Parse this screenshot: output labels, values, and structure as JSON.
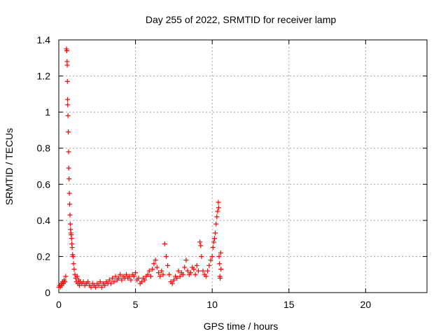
{
  "chart_data": {
    "type": "scatter",
    "title": "Day 255 of 2022, SRMTID for receiver lamp",
    "xlabel": "GPS time / hours",
    "ylabel": "SRMTID / TECUs",
    "xlim": [
      0,
      24
    ],
    "ylim": [
      0,
      1.4
    ],
    "xticks": [
      0,
      5,
      10,
      15,
      20
    ],
    "xtick_labels": [
      "0",
      "5",
      "10",
      "15",
      "20"
    ],
    "yticks": [
      0,
      0.2,
      0.4,
      0.6,
      0.8,
      1,
      1.2,
      1.4
    ],
    "ytick_labels": [
      "0",
      "0.2",
      "0.4",
      "0.6",
      "0.8",
      "1",
      "1.2",
      "1.4"
    ],
    "grid": true,
    "marker": "plus",
    "colors": {
      "series": "#ff0000",
      "grid": "#a0a0a0",
      "axis": "#000000"
    },
    "series": [
      {
        "name": "SRMTID",
        "points": [
          [
            0.0,
            0.03
          ],
          [
            0.05,
            0.04
          ],
          [
            0.1,
            0.03
          ],
          [
            0.15,
            0.05
          ],
          [
            0.2,
            0.04
          ],
          [
            0.25,
            0.06
          ],
          [
            0.3,
            0.05
          ],
          [
            0.35,
            0.07
          ],
          [
            0.4,
            0.06
          ],
          [
            0.45,
            0.09
          ],
          [
            0.5,
            1.35
          ],
          [
            0.52,
            1.34
          ],
          [
            0.54,
            1.28
          ],
          [
            0.55,
            1.26
          ],
          [
            0.56,
            1.17
          ],
          [
            0.57,
            1.07
          ],
          [
            0.58,
            1.04
          ],
          [
            0.6,
            0.98
          ],
          [
            0.62,
            0.89
          ],
          [
            0.64,
            0.78
          ],
          [
            0.65,
            0.69
          ],
          [
            0.67,
            0.63
          ],
          [
            0.69,
            0.55
          ],
          [
            0.71,
            0.49
          ],
          [
            0.73,
            0.43
          ],
          [
            0.75,
            0.38
          ],
          [
            0.77,
            0.35
          ],
          [
            0.79,
            0.33
          ],
          [
            0.81,
            0.32
          ],
          [
            0.83,
            0.3
          ],
          [
            0.85,
            0.27
          ],
          [
            0.87,
            0.25
          ],
          [
            0.9,
            0.21
          ],
          [
            0.93,
            0.2
          ],
          [
            0.96,
            0.16
          ],
          [
            1.0,
            0.13
          ],
          [
            1.05,
            0.1
          ],
          [
            1.1,
            0.08
          ],
          [
            1.15,
            0.06
          ],
          [
            1.2,
            0.09
          ],
          [
            1.25,
            0.05
          ],
          [
            1.3,
            0.07
          ],
          [
            1.35,
            0.04
          ],
          [
            1.4,
            0.06
          ],
          [
            1.5,
            0.05
          ],
          [
            1.6,
            0.06
          ],
          [
            1.7,
            0.04
          ],
          [
            1.8,
            0.05
          ],
          [
            1.9,
            0.06
          ],
          [
            2.0,
            0.04
          ],
          [
            2.1,
            0.03
          ],
          [
            2.2,
            0.05
          ],
          [
            2.3,
            0.04
          ],
          [
            2.4,
            0.03
          ],
          [
            2.5,
            0.05
          ],
          [
            2.6,
            0.04
          ],
          [
            2.7,
            0.06
          ],
          [
            2.8,
            0.03
          ],
          [
            2.9,
            0.05
          ],
          [
            3.0,
            0.04
          ],
          [
            3.1,
            0.06
          ],
          [
            3.2,
            0.05
          ],
          [
            3.3,
            0.07
          ],
          [
            3.4,
            0.05
          ],
          [
            3.5,
            0.08
          ],
          [
            3.6,
            0.06
          ],
          [
            3.7,
            0.09
          ],
          [
            3.8,
            0.07
          ],
          [
            3.9,
            0.08
          ],
          [
            4.0,
            0.1
          ],
          [
            4.1,
            0.07
          ],
          [
            4.2,
            0.09
          ],
          [
            4.3,
            0.08
          ],
          [
            4.4,
            0.1
          ],
          [
            4.5,
            0.08
          ],
          [
            4.6,
            0.09
          ],
          [
            4.7,
            0.07
          ],
          [
            4.8,
            0.1
          ],
          [
            4.9,
            0.09
          ],
          [
            5.0,
            0.11
          ],
          [
            5.1,
            0.07
          ],
          [
            5.2,
            0.08
          ],
          [
            5.3,
            0.05
          ],
          [
            5.4,
            0.06
          ],
          [
            5.5,
            0.08
          ],
          [
            5.6,
            0.07
          ],
          [
            5.7,
            0.09
          ],
          [
            5.8,
            0.1
          ],
          [
            5.9,
            0.12
          ],
          [
            6.0,
            0.09
          ],
          [
            6.1,
            0.13
          ],
          [
            6.2,
            0.16
          ],
          [
            6.3,
            0.18
          ],
          [
            6.4,
            0.14
          ],
          [
            6.5,
            0.11
          ],
          [
            6.6,
            0.09
          ],
          [
            6.7,
            0.12
          ],
          [
            6.8,
            0.1
          ],
          [
            6.9,
            0.27
          ],
          [
            7.0,
            0.2
          ],
          [
            7.1,
            0.15
          ],
          [
            7.2,
            0.1
          ],
          [
            7.3,
            0.06
          ],
          [
            7.4,
            0.05
          ],
          [
            7.5,
            0.07
          ],
          [
            7.6,
            0.09
          ],
          [
            7.7,
            0.08
          ],
          [
            7.8,
            0.12
          ],
          [
            7.9,
            0.09
          ],
          [
            8.0,
            0.11
          ],
          [
            8.1,
            0.1
          ],
          [
            8.2,
            0.14
          ],
          [
            8.3,
            0.18
          ],
          [
            8.4,
            0.12
          ],
          [
            8.5,
            0.1
          ],
          [
            8.6,
            0.11
          ],
          [
            8.7,
            0.14
          ],
          [
            8.8,
            0.13
          ],
          [
            8.9,
            0.1
          ],
          [
            9.0,
            0.15
          ],
          [
            9.1,
            0.12
          ],
          [
            9.2,
            0.28
          ],
          [
            9.25,
            0.26
          ],
          [
            9.3,
            0.2
          ],
          [
            9.4,
            0.12
          ],
          [
            9.5,
            0.1
          ],
          [
            9.6,
            0.09
          ],
          [
            9.7,
            0.12
          ],
          [
            9.8,
            0.15
          ],
          [
            9.9,
            0.18
          ],
          [
            10.0,
            0.2
          ],
          [
            10.05,
            0.25
          ],
          [
            10.1,
            0.28
          ],
          [
            10.15,
            0.3
          ],
          [
            10.2,
            0.33
          ],
          [
            10.25,
            0.38
          ],
          [
            10.3,
            0.42
          ],
          [
            10.35,
            0.45
          ],
          [
            10.4,
            0.5
          ],
          [
            10.42,
            0.47
          ],
          [
            10.45,
            0.2
          ],
          [
            10.48,
            0.16
          ],
          [
            10.5,
            0.09
          ],
          [
            10.52,
            0.08
          ],
          [
            10.55,
            0.22
          ],
          [
            10.57,
            0.13
          ]
        ]
      }
    ]
  }
}
